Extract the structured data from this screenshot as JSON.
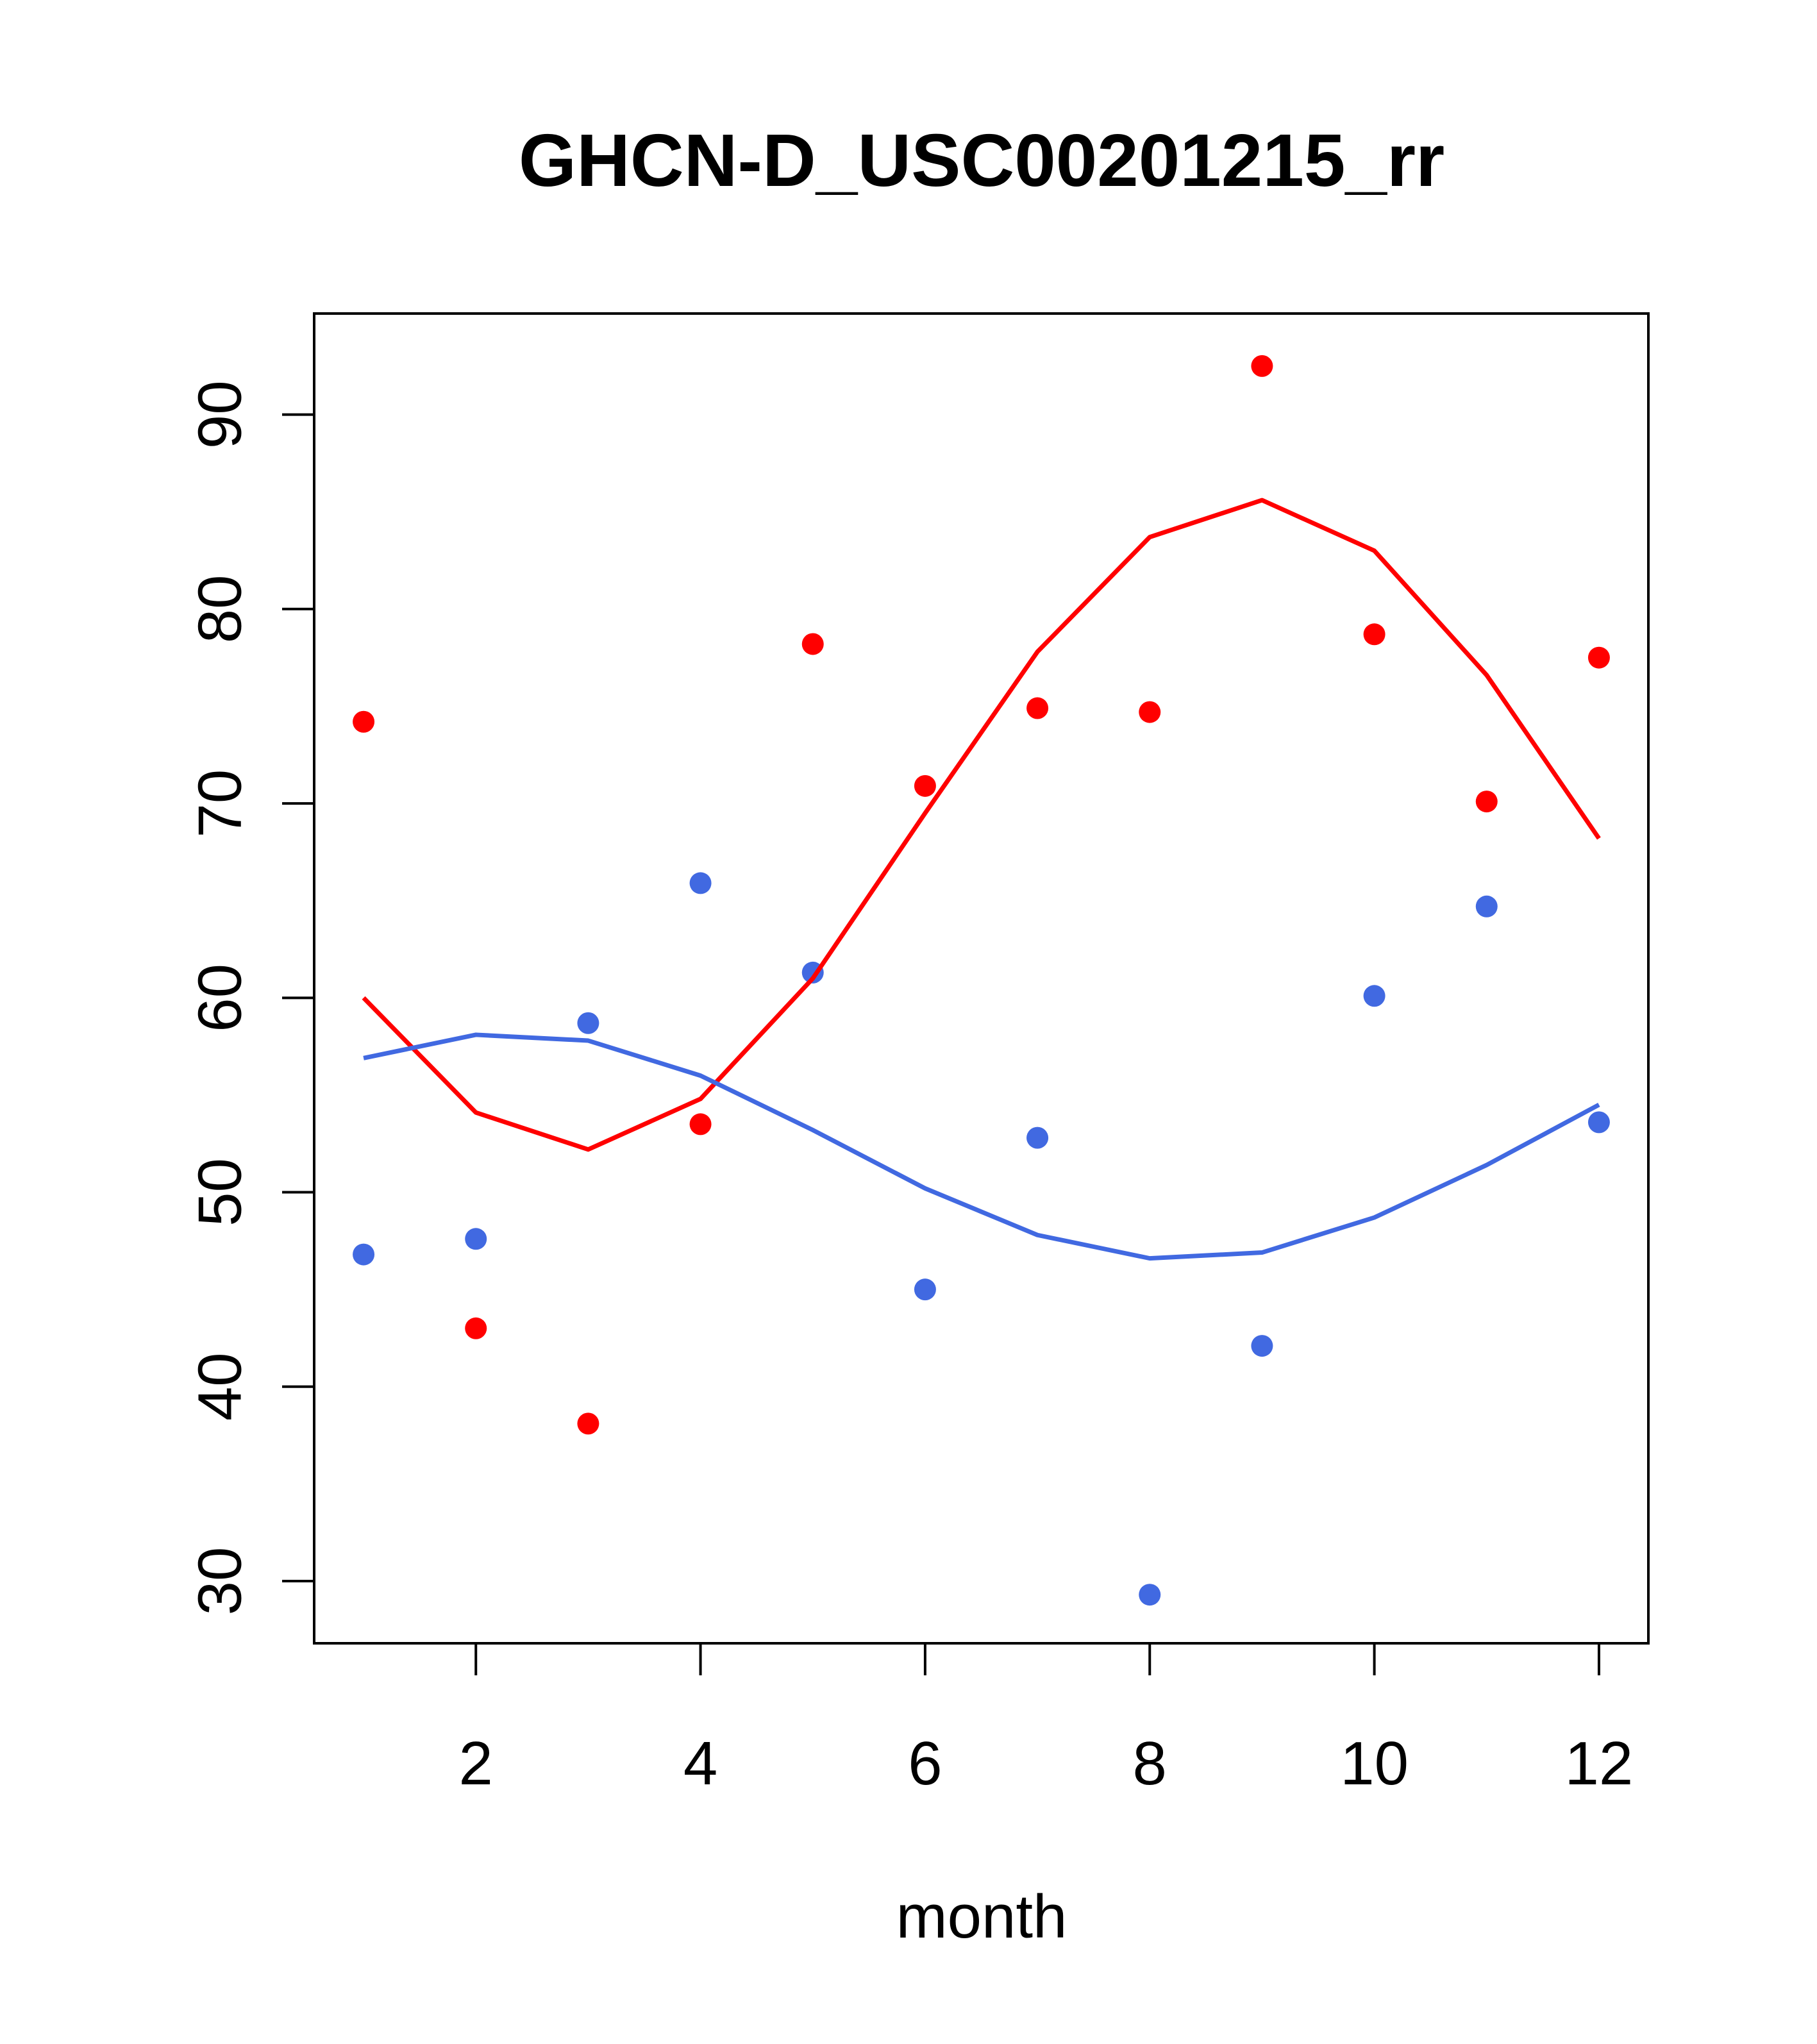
{
  "chart_data": {
    "type": "scatter",
    "title": "GHCN-D_USC00201215_rr",
    "xlabel": "month",
    "ylabel": "",
    "xlim": [
      0.56,
      12.44
    ],
    "ylim": [
      26.8,
      95.2
    ],
    "x_ticks": [
      2,
      4,
      6,
      8,
      10,
      12
    ],
    "y_ticks": [
      30,
      40,
      50,
      60,
      70,
      80,
      90
    ],
    "grid": false,
    "legend": "none",
    "series": [
      {
        "color": "#ff0000",
        "mark": "points",
        "x": [
          1,
          2,
          3,
          4,
          5,
          6,
          7,
          8,
          9,
          10,
          11,
          12
        ],
        "values": [
          74.2,
          43.0,
          38.1,
          53.5,
          78.2,
          70.9,
          74.9,
          74.7,
          92.5,
          78.7,
          70.1,
          77.5
        ]
      },
      {
        "color": "#4169e1",
        "mark": "points",
        "x": [
          1,
          2,
          3,
          4,
          5,
          6,
          7,
          8,
          9,
          10,
          11,
          12
        ],
        "values": [
          46.8,
          47.6,
          58.7,
          65.9,
          61.3,
          45.0,
          52.8,
          29.3,
          42.1,
          60.1,
          64.7,
          53.6
        ]
      },
      {
        "color": "#ff0000",
        "mark": "line",
        "x": [
          1,
          2,
          3,
          4,
          5,
          6,
          7,
          8,
          9,
          10,
          11,
          12
        ],
        "values": [
          60.0,
          54.1,
          52.2,
          54.8,
          61.0,
          69.5,
          77.8,
          83.7,
          85.6,
          83.0,
          76.6,
          68.2
        ]
      },
      {
        "color": "#4169e1",
        "mark": "line",
        "x": [
          1,
          2,
          3,
          4,
          5,
          6,
          7,
          8,
          9,
          10,
          11,
          12
        ],
        "values": [
          56.9,
          58.1,
          57.8,
          56.0,
          53.2,
          50.2,
          47.8,
          46.6,
          46.9,
          48.7,
          51.4,
          54.5
        ]
      }
    ]
  }
}
